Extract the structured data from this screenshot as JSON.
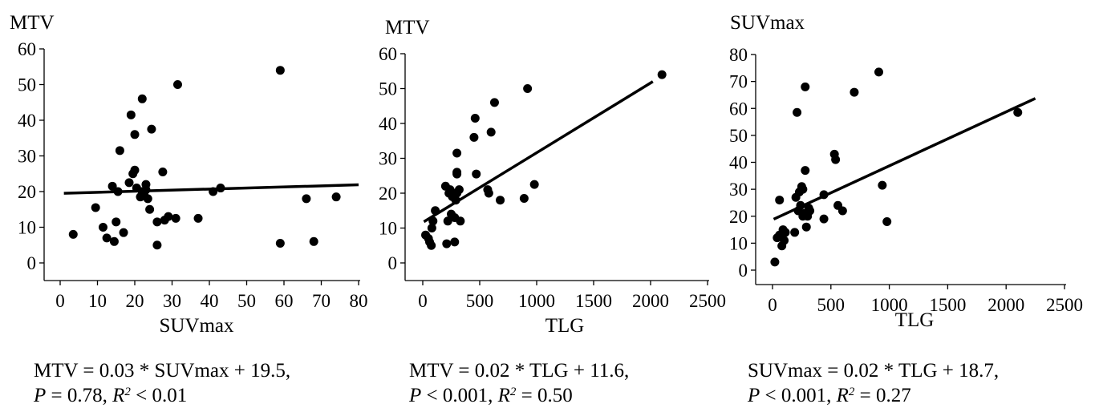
{
  "chart_data": [
    {
      "type": "scatter",
      "ylabel": "MTV",
      "xlabel": "SUVmax",
      "xlim": [
        0,
        80
      ],
      "ylim": [
        0,
        60
      ],
      "xticks": [
        "0",
        "10",
        "20",
        "30",
        "40",
        "50",
        "60",
        "70",
        "80"
      ],
      "yticks": [
        "0",
        "10",
        "20",
        "30",
        "40",
        "50",
        "60"
      ],
      "points": [
        [
          3.5,
          8
        ],
        [
          9.5,
          15.5
        ],
        [
          11.5,
          10
        ],
        [
          12.5,
          7
        ],
        [
          14,
          21.5
        ],
        [
          14.5,
          6
        ],
        [
          15,
          11.5
        ],
        [
          15.5,
          20
        ],
        [
          16,
          31.5
        ],
        [
          17,
          8.5
        ],
        [
          18.5,
          22.5
        ],
        [
          19,
          41.5
        ],
        [
          19.5,
          25
        ],
        [
          20,
          26
        ],
        [
          20,
          36
        ],
        [
          20.5,
          21
        ],
        [
          21.5,
          18.5
        ],
        [
          22,
          46
        ],
        [
          22,
          20
        ],
        [
          22.5,
          19
        ],
        [
          23,
          20.5
        ],
        [
          23,
          22
        ],
        [
          23.5,
          18
        ],
        [
          24,
          15
        ],
        [
          24.5,
          37.5
        ],
        [
          26,
          11.5
        ],
        [
          26,
          5
        ],
        [
          27.5,
          25.5
        ],
        [
          28,
          12
        ],
        [
          29,
          13
        ],
        [
          31,
          12.5
        ],
        [
          31.5,
          50
        ],
        [
          37,
          12.5
        ],
        [
          41,
          20
        ],
        [
          43,
          21
        ],
        [
          59,
          54
        ],
        [
          59,
          5.5
        ],
        [
          66,
          18
        ],
        [
          68,
          6
        ],
        [
          74,
          18.5
        ]
      ],
      "fit": {
        "slope": 0.03,
        "intercept": 19.5,
        "x_range": [
          1,
          80
        ]
      },
      "equation": {
        "line1": "MTV = 0.03 * SUVmax + 19.5,",
        "p_label": "P",
        "p_text": " = 0.78, ",
        "r_label": "R",
        "r_sup": "2",
        "r_text": " < 0.01"
      }
    },
    {
      "type": "scatter",
      "ylabel": "MTV",
      "xlabel": "TLG",
      "xlim": [
        0,
        2500
      ],
      "ylim": [
        0,
        60
      ],
      "xticks": [
        "0",
        "500",
        "1000",
        "1500",
        "2000",
        "2500"
      ],
      "yticks": [
        "0",
        "10",
        "20",
        "30",
        "40",
        "50",
        "60"
      ],
      "points": [
        [
          25,
          8
        ],
        [
          50,
          7
        ],
        [
          60,
          6
        ],
        [
          75,
          5
        ],
        [
          80,
          10
        ],
        [
          90,
          12
        ],
        [
          110,
          15
        ],
        [
          200,
          22
        ],
        [
          210,
          5.5
        ],
        [
          220,
          12
        ],
        [
          230,
          20
        ],
        [
          240,
          21
        ],
        [
          250,
          14
        ],
        [
          260,
          19
        ],
        [
          270,
          20
        ],
        [
          280,
          6
        ],
        [
          280,
          13
        ],
        [
          290,
          18
        ],
        [
          300,
          20
        ],
        [
          300,
          31.5
        ],
        [
          300,
          25.5
        ],
        [
          300,
          26
        ],
        [
          320,
          21
        ],
        [
          330,
          12
        ],
        [
          450,
          36
        ],
        [
          460,
          41.5
        ],
        [
          470,
          25.5
        ],
        [
          570,
          21
        ],
        [
          580,
          20
        ],
        [
          600,
          37.5
        ],
        [
          630,
          46
        ],
        [
          680,
          18
        ],
        [
          890,
          18.5
        ],
        [
          920,
          50
        ],
        [
          980,
          22.5
        ],
        [
          2100,
          54
        ]
      ],
      "fit": {
        "slope": 0.02,
        "intercept": 11.6,
        "x_range": [
          10,
          2020
        ]
      },
      "equation": {
        "line1": "MTV = 0.02 * TLG + 11.6,",
        "p_label": "P",
        "p_text": " < 0.001, ",
        "r_label": "R",
        "r_sup": "2",
        "r_text": " = 0.50"
      }
    },
    {
      "type": "scatter",
      "ylabel": "SUVmax",
      "xlabel": "TLG",
      "xlim": [
        0,
        2500
      ],
      "ylim": [
        0,
        80
      ],
      "xticks": [
        "0",
        "500",
        "1000",
        "1500",
        "2000",
        "2500"
      ],
      "yticks": [
        "0",
        "10",
        "20",
        "30",
        "40",
        "50",
        "60",
        "70",
        "80"
      ],
      "points": [
        [
          20,
          3
        ],
        [
          40,
          12
        ],
        [
          60,
          13
        ],
        [
          60,
          26
        ],
        [
          80,
          9
        ],
        [
          90,
          15
        ],
        [
          100,
          11
        ],
        [
          110,
          14
        ],
        [
          190,
          14
        ],
        [
          200,
          27
        ],
        [
          210,
          58.5
        ],
        [
          220,
          22
        ],
        [
          230,
          29
        ],
        [
          240,
          24
        ],
        [
          250,
          31
        ],
        [
          260,
          30
        ],
        [
          260,
          20
        ],
        [
          270,
          21
        ],
        [
          280,
          68
        ],
        [
          280,
          37
        ],
        [
          290,
          16
        ],
        [
          300,
          20
        ],
        [
          310,
          23
        ],
        [
          320,
          22
        ],
        [
          440,
          19
        ],
        [
          440,
          28
        ],
        [
          530,
          43
        ],
        [
          540,
          41
        ],
        [
          560,
          24
        ],
        [
          600,
          22
        ],
        [
          700,
          66
        ],
        [
          910,
          73.5
        ],
        [
          940,
          31.5
        ],
        [
          980,
          18
        ],
        [
          2100,
          58.5
        ]
      ],
      "fit": {
        "slope": 0.02,
        "intercept": 18.7,
        "x_range": [
          10,
          2250
        ]
      },
      "equation": {
        "line1": "SUVmax = 0.02 * TLG + 18.7,",
        "p_label": "P",
        "p_text": " < 0.001, ",
        "r_label": "R",
        "r_sup": "2",
        "r_text": " = 0.27"
      }
    }
  ]
}
